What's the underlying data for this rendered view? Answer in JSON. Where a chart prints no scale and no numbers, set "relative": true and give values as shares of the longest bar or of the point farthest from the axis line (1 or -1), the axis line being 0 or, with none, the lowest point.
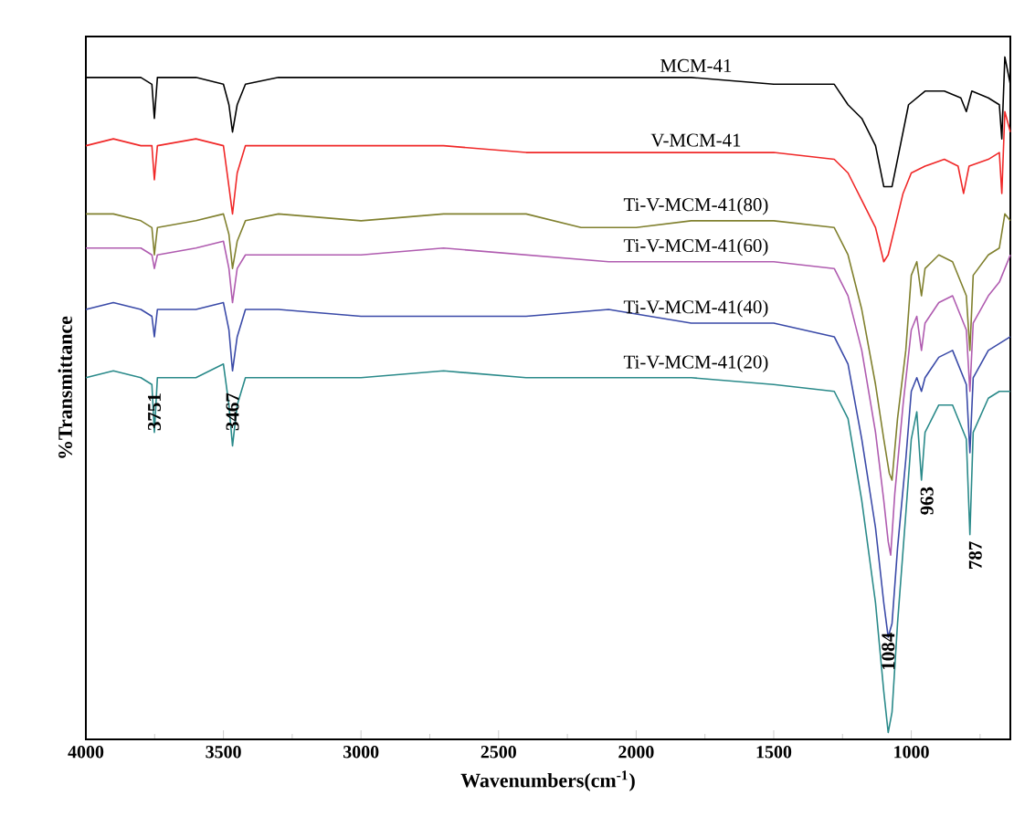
{
  "chart_data": {
    "type": "line",
    "relative": true,
    "xlabel": "Wavenumbers(cm$^{-1}$)",
    "ylabel": "%Transmittance",
    "xlim": [
      4000,
      640
    ],
    "xticks": [
      4000,
      {
        "value": 3750,
        "label": null
      },
      3500,
      {
        "value": 3250,
        "label": null
      },
      3000,
      {
        "value": 2750,
        "label": null
      },
      2500,
      {
        "value": 2250,
        "label": null
      },
      2000,
      {
        "value": 1750,
        "label": null
      },
      1500,
      {
        "value": 1250,
        "label": null
      },
      1000,
      {
        "value": 750,
        "label": null
      }
    ],
    "series": [
      {
        "name": "MCM-41",
        "color": "#000000",
        "x": [
          4000,
          3900,
          3800,
          3760,
          3751,
          3740,
          3600,
          3500,
          3480,
          3467,
          3450,
          3420,
          3300,
          3000,
          2700,
          2400,
          2100,
          1800,
          1500,
          1280,
          1230,
          1180,
          1130,
          1100,
          1084,
          1070,
          1040,
          1010,
          950,
          880,
          820,
          800,
          780,
          720,
          680,
          671,
          660,
          640
        ],
        "values": [
          0.97,
          0.97,
          0.97,
          0.96,
          0.91,
          0.97,
          0.97,
          0.96,
          0.93,
          0.89,
          0.93,
          0.96,
          0.97,
          0.97,
          0.97,
          0.97,
          0.97,
          0.97,
          0.96,
          0.96,
          0.93,
          0.91,
          0.87,
          0.81,
          0.81,
          0.81,
          0.87,
          0.93,
          0.95,
          0.95,
          0.94,
          0.92,
          0.95,
          0.94,
          0.93,
          0.88,
          1.0,
          0.96
        ]
      },
      {
        "name": "V-MCM-41",
        "color": "#f02828",
        "x": [
          4000,
          3900,
          3800,
          3760,
          3751,
          3740,
          3600,
          3500,
          3480,
          3467,
          3450,
          3420,
          3300,
          3000,
          2700,
          2400,
          2100,
          1800,
          1500,
          1280,
          1230,
          1180,
          1130,
          1100,
          1084,
          1060,
          1030,
          1000,
          950,
          880,
          830,
          810,
          790,
          720,
          680,
          671,
          660,
          640
        ],
        "values": [
          0.87,
          0.88,
          0.87,
          0.87,
          0.82,
          0.87,
          0.88,
          0.87,
          0.81,
          0.77,
          0.83,
          0.87,
          0.87,
          0.87,
          0.87,
          0.86,
          0.86,
          0.86,
          0.86,
          0.85,
          0.83,
          0.79,
          0.75,
          0.7,
          0.71,
          0.75,
          0.8,
          0.83,
          0.84,
          0.85,
          0.84,
          0.8,
          0.84,
          0.85,
          0.86,
          0.8,
          0.92,
          0.89
        ]
      },
      {
        "name": "Ti-V-MCM-41(80)",
        "color": "#80802e",
        "x": [
          4000,
          3900,
          3800,
          3760,
          3751,
          3740,
          3600,
          3500,
          3480,
          3467,
          3450,
          3420,
          3300,
          3000,
          2700,
          2400,
          2200,
          2000,
          1800,
          1500,
          1280,
          1230,
          1180,
          1130,
          1100,
          1080,
          1070,
          1050,
          1020,
          1000,
          980,
          963,
          950,
          900,
          850,
          800,
          787,
          775,
          720,
          680,
          660,
          640
        ],
        "values": [
          0.77,
          0.77,
          0.76,
          0.75,
          0.71,
          0.75,
          0.76,
          0.77,
          0.74,
          0.69,
          0.73,
          0.76,
          0.77,
          0.76,
          0.77,
          0.77,
          0.75,
          0.75,
          0.76,
          0.76,
          0.75,
          0.71,
          0.63,
          0.52,
          0.44,
          0.39,
          0.38,
          0.47,
          0.57,
          0.68,
          0.7,
          0.65,
          0.69,
          0.71,
          0.7,
          0.65,
          0.57,
          0.68,
          0.71,
          0.72,
          0.77,
          0.76
        ]
      },
      {
        "name": "Ti-V-MCM-41(60)",
        "color": "#b05cb0",
        "x": [
          4000,
          3900,
          3800,
          3760,
          3751,
          3740,
          3600,
          3500,
          3480,
          3467,
          3450,
          3420,
          3300,
          3000,
          2700,
          2400,
          2100,
          1800,
          1500,
          1280,
          1230,
          1180,
          1130,
          1100,
          1084,
          1075,
          1060,
          1030,
          1000,
          980,
          963,
          950,
          900,
          850,
          800,
          787,
          775,
          720,
          680,
          640
        ],
        "values": [
          0.72,
          0.72,
          0.72,
          0.71,
          0.69,
          0.71,
          0.72,
          0.73,
          0.69,
          0.64,
          0.69,
          0.71,
          0.71,
          0.71,
          0.72,
          0.71,
          0.7,
          0.7,
          0.7,
          0.69,
          0.65,
          0.57,
          0.45,
          0.35,
          0.29,
          0.27,
          0.36,
          0.49,
          0.6,
          0.62,
          0.57,
          0.61,
          0.64,
          0.65,
          0.6,
          0.51,
          0.61,
          0.65,
          0.67,
          0.71
        ]
      },
      {
        "name": "Ti-V-MCM-41(40)",
        "color": "#3a4aa8",
        "x": [
          4000,
          3900,
          3800,
          3760,
          3751,
          3740,
          3600,
          3500,
          3480,
          3467,
          3450,
          3420,
          3300,
          3000,
          2700,
          2400,
          2100,
          1800,
          1500,
          1280,
          1230,
          1180,
          1130,
          1100,
          1084,
          1070,
          1050,
          1020,
          1000,
          980,
          963,
          950,
          900,
          850,
          800,
          787,
          775,
          720,
          680,
          640
        ],
        "values": [
          0.63,
          0.64,
          0.63,
          0.62,
          0.59,
          0.63,
          0.63,
          0.64,
          0.6,
          0.54,
          0.59,
          0.63,
          0.63,
          0.62,
          0.62,
          0.62,
          0.63,
          0.61,
          0.61,
          0.59,
          0.55,
          0.44,
          0.31,
          0.2,
          0.15,
          0.17,
          0.28,
          0.41,
          0.51,
          0.53,
          0.51,
          0.53,
          0.56,
          0.57,
          0.52,
          0.42,
          0.53,
          0.57,
          0.58,
          0.59
        ]
      },
      {
        "name": "Ti-V-MCM-41(20)",
        "color": "#2a8a8a",
        "x": [
          4000,
          3900,
          3800,
          3760,
          3751,
          3740,
          3600,
          3500,
          3480,
          3467,
          3450,
          3420,
          3300,
          3000,
          2700,
          2400,
          2100,
          1800,
          1500,
          1280,
          1230,
          1180,
          1130,
          1100,
          1084,
          1070,
          1050,
          1020,
          1000,
          980,
          963,
          950,
          900,
          850,
          800,
          787,
          775,
          720,
          680,
          640
        ],
        "values": [
          0.53,
          0.54,
          0.53,
          0.52,
          0.45,
          0.53,
          0.53,
          0.55,
          0.49,
          0.43,
          0.49,
          0.53,
          0.53,
          0.53,
          0.54,
          0.53,
          0.53,
          0.53,
          0.52,
          0.51,
          0.47,
          0.35,
          0.2,
          0.07,
          0.01,
          0.04,
          0.17,
          0.33,
          0.44,
          0.48,
          0.38,
          0.45,
          0.49,
          0.49,
          0.44,
          0.3,
          0.45,
          0.5,
          0.51,
          0.51
        ]
      }
    ],
    "annotations": [
      {
        "text": "3751",
        "x": 3751,
        "y": 0.48
      },
      {
        "text": "3467",
        "x": 3467,
        "y": 0.48
      },
      {
        "text": "1084",
        "x": 1084,
        "y": 0.11
      },
      {
        "text": "963",
        "x": 963,
        "y": 0.38
      },
      {
        "text": "787",
        "x": 787,
        "y": 0.3
      }
    ]
  }
}
